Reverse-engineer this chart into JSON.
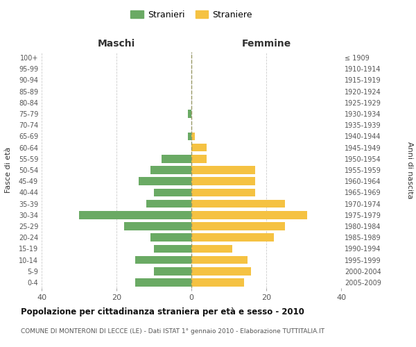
{
  "age_groups": [
    "0-4",
    "5-9",
    "10-14",
    "15-19",
    "20-24",
    "25-29",
    "30-34",
    "35-39",
    "40-44",
    "45-49",
    "50-54",
    "55-59",
    "60-64",
    "65-69",
    "70-74",
    "75-79",
    "80-84",
    "85-89",
    "90-94",
    "95-99",
    "100+"
  ],
  "birth_years": [
    "2005-2009",
    "2000-2004",
    "1995-1999",
    "1990-1994",
    "1985-1989",
    "1980-1984",
    "1975-1979",
    "1970-1974",
    "1965-1969",
    "1960-1964",
    "1955-1959",
    "1950-1954",
    "1945-1949",
    "1940-1944",
    "1935-1939",
    "1930-1934",
    "1925-1929",
    "1920-1924",
    "1915-1919",
    "1910-1914",
    "≤ 1909"
  ],
  "maschi": [
    15,
    10,
    15,
    10,
    11,
    18,
    30,
    12,
    10,
    14,
    11,
    8,
    0,
    1,
    0,
    1,
    0,
    0,
    0,
    0,
    0
  ],
  "femmine": [
    14,
    16,
    15,
    11,
    22,
    25,
    31,
    25,
    17,
    17,
    17,
    4,
    4,
    1,
    0,
    0,
    0,
    0,
    0,
    0,
    0
  ],
  "maschi_color": "#6aaa64",
  "femmine_color": "#f5c242",
  "title": "Popolazione per cittadinanza straniera per età e sesso - 2010",
  "subtitle": "COMUNE DI MONTERONI DI LECCE (LE) - Dati ISTAT 1° gennaio 2010 - Elaborazione TUTTITALIA.IT",
  "xlabel_left": "Maschi",
  "xlabel_right": "Femmine",
  "ylabel_left": "Fasce di età",
  "ylabel_right": "Anni di nascita",
  "legend_maschi": "Stranieri",
  "legend_femmine": "Straniere",
  "xlim": 40,
  "background_color": "#ffffff",
  "grid_color": "#cccccc"
}
